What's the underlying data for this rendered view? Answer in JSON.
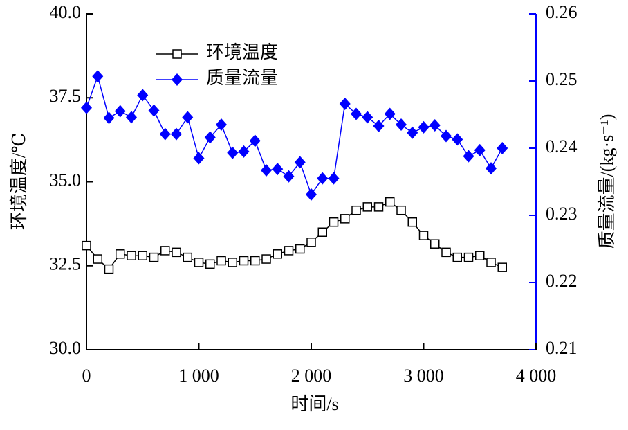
{
  "chart_data": {
    "type": "line",
    "x_label": "时间/s",
    "y_label": "环境温度/℃",
    "y2_label": "质量流量/(kg·s⁻¹)",
    "x": [
      0,
      100,
      200,
      300,
      400,
      500,
      600,
      700,
      800,
      900,
      1000,
      1100,
      1200,
      1300,
      1400,
      1500,
      1600,
      1700,
      1800,
      1900,
      2000,
      2100,
      2200,
      2300,
      2400,
      2500,
      2600,
      2700,
      2800,
      2900,
      3000,
      3100,
      3200,
      3300,
      3400,
      3500,
      3600,
      3700
    ],
    "series": [
      {
        "name": "环境温度",
        "color": "#000000",
        "marker": "square",
        "values": [
          33.1,
          32.7,
          32.4,
          32.85,
          32.8,
          32.8,
          32.75,
          32.95,
          32.9,
          32.75,
          32.6,
          32.55,
          32.65,
          32.6,
          32.65,
          32.65,
          32.7,
          32.85,
          32.95,
          33.0,
          33.2,
          33.5,
          33.8,
          33.9,
          34.15,
          34.25,
          34.25,
          34.4,
          34.15,
          33.8,
          33.4,
          33.15,
          32.9,
          32.75,
          32.75,
          32.8,
          32.6,
          32.45
        ]
      },
      {
        "name": "质量流量",
        "color": "#0000ff",
        "marker": "diamond",
        "axis": "y2",
        "values": [
          0.246,
          0.2507,
          0.2445,
          0.2455,
          0.2446,
          0.2479,
          0.2456,
          0.2421,
          0.2421,
          0.2446,
          0.2385,
          0.2416,
          0.2435,
          0.2393,
          0.2395,
          0.2411,
          0.2367,
          0.2369,
          0.2358,
          0.2379,
          0.2331,
          0.2355,
          0.2355,
          0.2466,
          0.2451,
          0.2446,
          0.2433,
          0.2451,
          0.2435,
          0.2423,
          0.2431,
          0.2434,
          0.2418,
          0.2413,
          0.2388,
          0.2397,
          0.237,
          0.24
        ]
      }
    ],
    "xlim": [
      0,
      4000
    ],
    "xticks": [
      0,
      {
        "value": 1000,
        "label": "1 000"
      },
      {
        "value": 2000,
        "label": "2 000"
      },
      {
        "value": 3000,
        "label": "3 000"
      },
      {
        "value": 4000,
        "label": "4 000"
      }
    ],
    "ylim": [
      30,
      40
    ],
    "yticks": [
      {
        "value": 30,
        "label": "30.0"
      },
      32.5,
      {
        "value": 35,
        "label": "35.0"
      },
      37.5,
      {
        "value": 40,
        "label": "40.0"
      }
    ],
    "y2lim": [
      0.21,
      0.26
    ],
    "y2ticks": [
      0.21,
      0.22,
      0.23,
      0.24,
      0.25,
      0.26
    ],
    "y2_color": "#0000ff",
    "legend": "upper left"
  }
}
